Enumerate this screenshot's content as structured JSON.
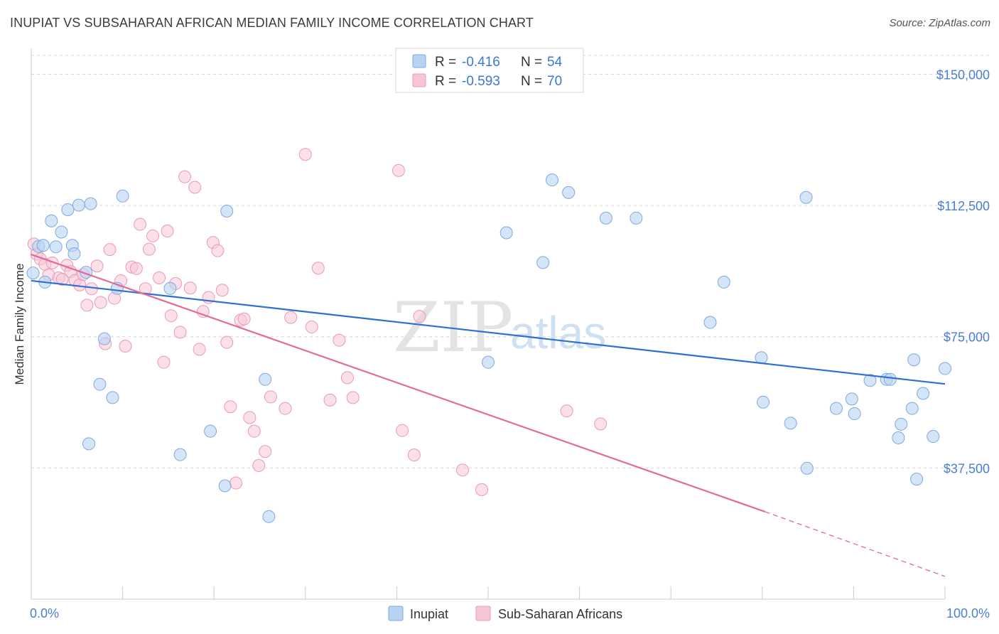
{
  "title": "INUPIAT VS SUBSAHARAN AFRICAN MEDIAN FAMILY INCOME CORRELATION CHART",
  "source": "Source: ZipAtlas.com",
  "watermark": {
    "zip": "ZIP",
    "atlas": "atlas"
  },
  "colors": {
    "inupiat_fill": "#b8d3f2",
    "inupiat_stroke": "#7ea9e0",
    "inupiat_line": "#2f6fcf",
    "subsaharan_fill": "#f7c6d6",
    "subsaharan_stroke": "#e99ab5",
    "subsaharan_line": "#e26a96",
    "grid": "#d9d9d9",
    "axis_text": "#4a7fd0"
  },
  "legend": {
    "r_label": "R =",
    "n_label": "N =",
    "inupiat": {
      "r": "-0.416",
      "n": "54"
    },
    "subsaharan": {
      "r": "-0.593",
      "n": "70"
    }
  },
  "chart_data": {
    "type": "scatter",
    "title": "INUPIAT VS SUBSAHARAN AFRICAN MEDIAN FAMILY INCOME CORRELATION CHART",
    "xlabel": "",
    "ylabel": "Median Family Income",
    "xlim": [
      0,
      100
    ],
    "ylim": [
      0,
      157000
    ],
    "x_tick_labels": [
      "0.0%",
      "100.0%"
    ],
    "y_ticks": [
      37500,
      75000,
      112500,
      150000
    ],
    "y_tick_labels": [
      "$37,500",
      "$75,000",
      "$112,500",
      "$150,000"
    ],
    "grid": true,
    "legend_position": "top-center",
    "series": [
      {
        "name": "Inupiat",
        "points": [
          [
            0.2,
            93200
          ],
          [
            1.5,
            90600
          ],
          [
            0.8,
            100800
          ],
          [
            1.3,
            101100
          ],
          [
            2.2,
            108100
          ],
          [
            2.7,
            100700
          ],
          [
            3.3,
            104900
          ],
          [
            4.0,
            111300
          ],
          [
            4.5,
            101100
          ],
          [
            4.7,
            98700
          ],
          [
            5.2,
            112600
          ],
          [
            6.0,
            93400
          ],
          [
            6.5,
            113000
          ],
          [
            7.5,
            61400
          ],
          [
            8.0,
            74400
          ],
          [
            8.9,
            57600
          ],
          [
            9.4,
            88800
          ],
          [
            10.0,
            115200
          ],
          [
            6.3,
            44400
          ],
          [
            15.2,
            88800
          ],
          [
            16.3,
            41300
          ],
          [
            19.6,
            48000
          ],
          [
            21.4,
            110900
          ],
          [
            21.2,
            32400
          ],
          [
            25.6,
            62800
          ],
          [
            26.0,
            23600
          ],
          [
            50.0,
            67700
          ],
          [
            52.0,
            104700
          ],
          [
            56.0,
            96200
          ],
          [
            57.0,
            119800
          ],
          [
            58.8,
            116200
          ],
          [
            62.9,
            108900
          ],
          [
            66.2,
            108900
          ],
          [
            75.8,
            90600
          ],
          [
            74.3,
            79100
          ],
          [
            79.9,
            69000
          ],
          [
            80.1,
            56300
          ],
          [
            83.1,
            50300
          ],
          [
            84.9,
            37400
          ],
          [
            84.8,
            114800
          ],
          [
            88.1,
            54500
          ],
          [
            89.8,
            57200
          ],
          [
            90.1,
            53000
          ],
          [
            91.8,
            62500
          ],
          [
            93.6,
            62800
          ],
          [
            94.0,
            62800
          ],
          [
            94.9,
            46100
          ],
          [
            95.2,
            50000
          ],
          [
            96.4,
            54500
          ],
          [
            96.6,
            68400
          ],
          [
            96.9,
            34300
          ],
          [
            97.6,
            58800
          ],
          [
            98.7,
            46500
          ],
          [
            100.0,
            65900
          ]
        ],
        "trend": {
          "x": [
            0,
            100
          ],
          "y": [
            91000,
            61500
          ]
        }
      },
      {
        "name": "Sub-Saharan Africans",
        "points": [
          [
            0.3,
            101500
          ],
          [
            0.6,
            98600
          ],
          [
            1.0,
            97200
          ],
          [
            1.5,
            95700
          ],
          [
            1.9,
            92700
          ],
          [
            2.3,
            96100
          ],
          [
            3.0,
            91800
          ],
          [
            3.4,
            91400
          ],
          [
            3.9,
            95400
          ],
          [
            4.3,
            93600
          ],
          [
            4.8,
            91100
          ],
          [
            5.3,
            89800
          ],
          [
            5.7,
            92800
          ],
          [
            6.1,
            84000
          ],
          [
            6.6,
            88700
          ],
          [
            7.2,
            95200
          ],
          [
            7.6,
            84800
          ],
          [
            8.1,
            73000
          ],
          [
            8.6,
            99900
          ],
          [
            9.1,
            86000
          ],
          [
            9.8,
            91000
          ],
          [
            10.3,
            72300
          ],
          [
            11.0,
            94900
          ],
          [
            11.5,
            94500
          ],
          [
            11.9,
            107100
          ],
          [
            12.5,
            88700
          ],
          [
            12.9,
            100000
          ],
          [
            13.3,
            103800
          ],
          [
            14.0,
            91800
          ],
          [
            14.5,
            67700
          ],
          [
            14.9,
            105200
          ],
          [
            15.3,
            81000
          ],
          [
            15.8,
            90200
          ],
          [
            16.3,
            76300
          ],
          [
            16.8,
            120700
          ],
          [
            17.4,
            88900
          ],
          [
            17.9,
            117700
          ],
          [
            18.4,
            71400
          ],
          [
            18.8,
            82200
          ],
          [
            19.4,
            86200
          ],
          [
            19.9,
            101900
          ],
          [
            20.4,
            99600
          ],
          [
            20.9,
            88300
          ],
          [
            21.4,
            73400
          ],
          [
            21.8,
            55000
          ],
          [
            22.4,
            33200
          ],
          [
            22.9,
            79700
          ],
          [
            23.3,
            80100
          ],
          [
            23.9,
            51900
          ],
          [
            24.4,
            48000
          ],
          [
            24.9,
            38200
          ],
          [
            25.6,
            42200
          ],
          [
            26.2,
            57800
          ],
          [
            27.8,
            54500
          ],
          [
            28.4,
            80500
          ],
          [
            30.0,
            127100
          ],
          [
            30.7,
            77800
          ],
          [
            31.4,
            94600
          ],
          [
            32.7,
            56900
          ],
          [
            33.7,
            74000
          ],
          [
            34.6,
            63300
          ],
          [
            35.2,
            57600
          ],
          [
            40.2,
            122500
          ],
          [
            40.6,
            48200
          ],
          [
            41.9,
            41200
          ],
          [
            42.5,
            80800
          ],
          [
            47.2,
            36900
          ],
          [
            49.3,
            31300
          ],
          [
            58.6,
            53800
          ],
          [
            62.3,
            50100
          ]
        ],
        "trend": {
          "x": [
            0,
            80.3
          ],
          "y": [
            98500,
            25000
          ]
        },
        "trend_dashed": {
          "x": [
            80.3,
            100
          ],
          "y": [
            25000,
            6500
          ]
        }
      }
    ]
  },
  "bottom_legend": [
    "Inupiat",
    "Sub-Saharan Africans"
  ]
}
